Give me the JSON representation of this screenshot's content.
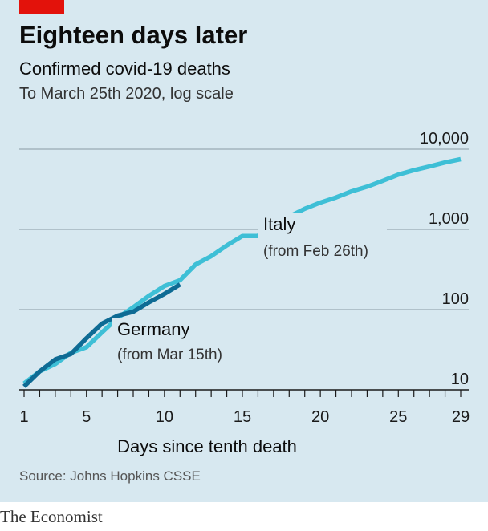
{
  "title": "Eighteen days later",
  "subtitle": "Confirmed covid-19 deaths",
  "subtitle2": "To March 25th 2020, log scale",
  "source": "Source: Johns Hopkins CSSE",
  "publisher": "The Economist",
  "colors": {
    "background": "#d7e8f0",
    "brand_red": "#e3120b",
    "italy": "#3ebfd6",
    "germany": "#0e6b94",
    "gridline": "#8a9aa3"
  },
  "chart_data": {
    "type": "line",
    "xlabel": "Days since tenth death",
    "ylabel": "",
    "yscale": "log",
    "xlim": [
      1,
      29
    ],
    "ylim": [
      10,
      10000
    ],
    "x_ticks": [
      1,
      5,
      10,
      15,
      20,
      25,
      29
    ],
    "y_ticks": [
      {
        "value": 10,
        "label": "10"
      },
      {
        "value": 100,
        "label": "100"
      },
      {
        "value": 1000,
        "label": "1,000"
      },
      {
        "value": 10000,
        "label": "10,000"
      }
    ],
    "series": [
      {
        "name": "Italy",
        "annotation": "(from Feb 26th)",
        "x": [
          1,
          2,
          3,
          4,
          5,
          6,
          7,
          8,
          9,
          10,
          11,
          12,
          13,
          14,
          15,
          16,
          17,
          18,
          19,
          20,
          21,
          22,
          23,
          24,
          25,
          26,
          27,
          28,
          29
        ],
        "y": [
          12,
          17,
          21,
          29,
          34,
          52,
          79,
          107,
          148,
          197,
          233,
          366,
          463,
          631,
          827,
          827,
          1266,
          1441,
          1809,
          2158,
          2503,
          2978,
          3405,
          4032,
          4825,
          5476,
          6077,
          6820,
          7503
        ]
      },
      {
        "name": "Germany",
        "annotation": "(from Mar 15th)",
        "x": [
          1,
          2,
          3,
          4,
          5,
          6,
          7,
          8,
          9,
          10,
          11
        ],
        "y": [
          11,
          17,
          24,
          28,
          44,
          67,
          84,
          94,
          123,
          157,
          206
        ]
      }
    ]
  }
}
